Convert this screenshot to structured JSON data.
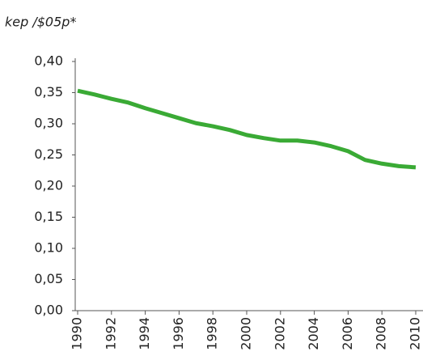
{
  "chart_data": {
    "type": "line",
    "y_label": "kep /$05p*",
    "x": [
      1990,
      1991,
      1992,
      1993,
      1994,
      1995,
      1996,
      1997,
      1998,
      1999,
      2000,
      2001,
      2002,
      2003,
      2004,
      2005,
      2006,
      2007,
      2008,
      2009,
      2010
    ],
    "series": [
      {
        "name": "kep",
        "color": "#3aaa35",
        "values": [
          0.353,
          0.347,
          0.34,
          0.334,
          0.325,
          0.317,
          0.309,
          0.301,
          0.296,
          0.29,
          0.282,
          0.277,
          0.273,
          0.273,
          0.27,
          0.264,
          0.256,
          0.242,
          0.236,
          0.232,
          0.23
        ]
      }
    ],
    "xlim": [
      1990,
      2010
    ],
    "xticks": [
      1990,
      1992,
      1994,
      1996,
      1998,
      2000,
      2002,
      2004,
      2006,
      2008,
      2010
    ],
    "ylim": [
      0,
      0.4
    ],
    "yticks": [
      {
        "value": 0,
        "label": "0,00"
      },
      {
        "value": 0.05,
        "label": "0,05"
      },
      {
        "value": 0.1,
        "label": "0,10"
      },
      {
        "value": 0.15,
        "label": "0,15"
      },
      {
        "value": 0.2,
        "label": "0,20"
      },
      {
        "value": 0.25,
        "label": "0,25"
      },
      {
        "value": 0.3,
        "label": "0,30"
      },
      {
        "value": 0.35,
        "label": "0,35"
      },
      {
        "value": 0.4,
        "label": "0,40"
      }
    ],
    "grid": false
  }
}
